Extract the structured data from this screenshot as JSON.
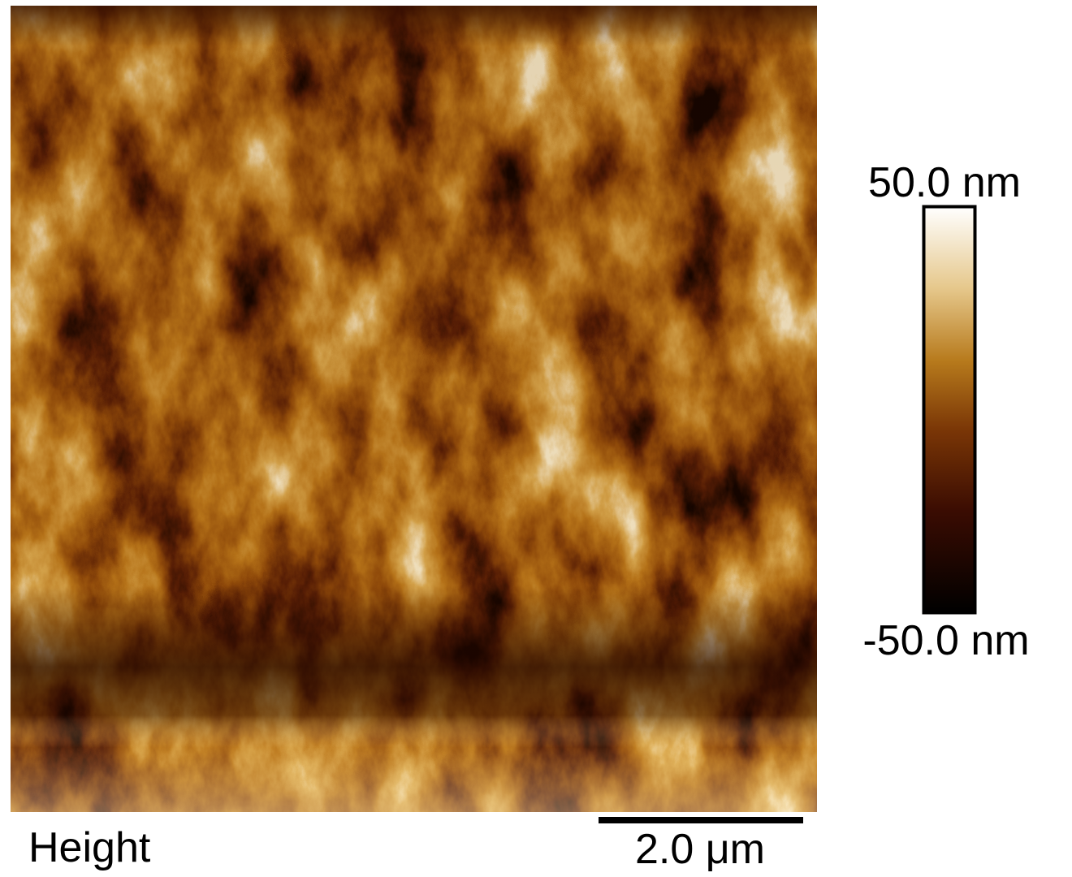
{
  "colorbar": {
    "max_label": "50.0 nm",
    "min_label": "-50.0 nm"
  },
  "channel_label": "Height",
  "scale_bar_label": "2.0 μm"
}
